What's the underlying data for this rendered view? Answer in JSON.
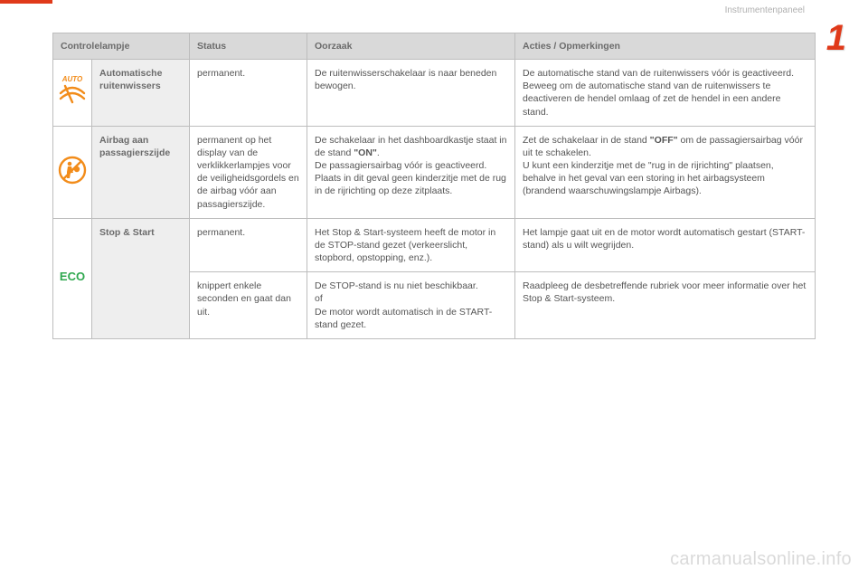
{
  "header": {
    "section_label": "Instrumentenpaneel",
    "chapter_number": "1"
  },
  "table": {
    "columns": {
      "c0": "Controlelampje",
      "c1": "Status",
      "c2": "Oorzaak",
      "c3": "Acties / Opmerkingen"
    },
    "rows": [
      {
        "icon": {
          "name": "wiper-auto-icon",
          "auto_text": "AUTO",
          "stroke": "#f28c1a"
        },
        "name": "Automatische ruitenwissers",
        "status": "permanent.",
        "cause": "De ruitenwisserschakelaar is naar beneden bewogen.",
        "action": "De automatische stand van de ruitenwissers vóór is geactiveerd.\nBeweeg om de automatische stand van de ruitenwissers te deactiveren de hendel omlaag of zet de hendel in een andere stand."
      },
      {
        "icon": {
          "name": "passenger-airbag-icon",
          "stroke": "#f28c1a"
        },
        "name": "Airbag aan passagierszijde",
        "status": "permanent op het display van de verklikkerlampjes voor de veiligheidsgordels en de airbag vóór aan passagierszijde.",
        "cause_parts": {
          "p1": "De schakelaar in het dashboardkastje staat in de stand ",
          "on": "\"ON\"",
          "p2": ".\nDe passagiersairbag vóór is geactiveerd.\nPlaats in dit geval geen kinderzitje met de rug in de rijrichting op deze zitplaats."
        },
        "action_parts": {
          "p1": "Zet de schakelaar in de stand ",
          "off": "\"OFF\"",
          "p2": " om de passagiersairbag vóór uit te schakelen.\nU kunt een kinderzitje met de \"rug in de rijrichting\" plaatsen, behalve in het geval van een storing in het airbagsysteem (brandend waarschuwingslampje Airbags)."
        }
      },
      {
        "icon": {
          "name": "eco-icon",
          "text": "ECO",
          "color": "#2fa84f"
        },
        "name": "Stop & Start",
        "status": "permanent.",
        "cause": "Het Stop & Start-systeem heeft de motor in de STOP-stand gezet (verkeerslicht, stopbord, opstopping, enz.).",
        "action": "Het lampje gaat uit en de motor wordt automatisch gestart (START-stand) als u wilt wegrijden."
      },
      {
        "status": "knippert enkele seconden en gaat dan uit.",
        "cause": "De STOP-stand is nu niet beschikbaar.\nof\nDe motor wordt automatisch in de START-stand gezet.",
        "action": "Raadpleeg de desbetreffende rubriek voor meer informatie over het Stop & Start-systeem."
      }
    ]
  },
  "watermark": "carmanualsonline.info",
  "colors": {
    "accent": "#e03a1a",
    "icon_orange": "#f28c1a",
    "icon_green": "#2fa84f",
    "header_bg": "#d9d9d9",
    "name_bg": "#eeeeee",
    "border": "#bdbdbd",
    "text": "#555555",
    "muted": "#b0b0b0"
  }
}
